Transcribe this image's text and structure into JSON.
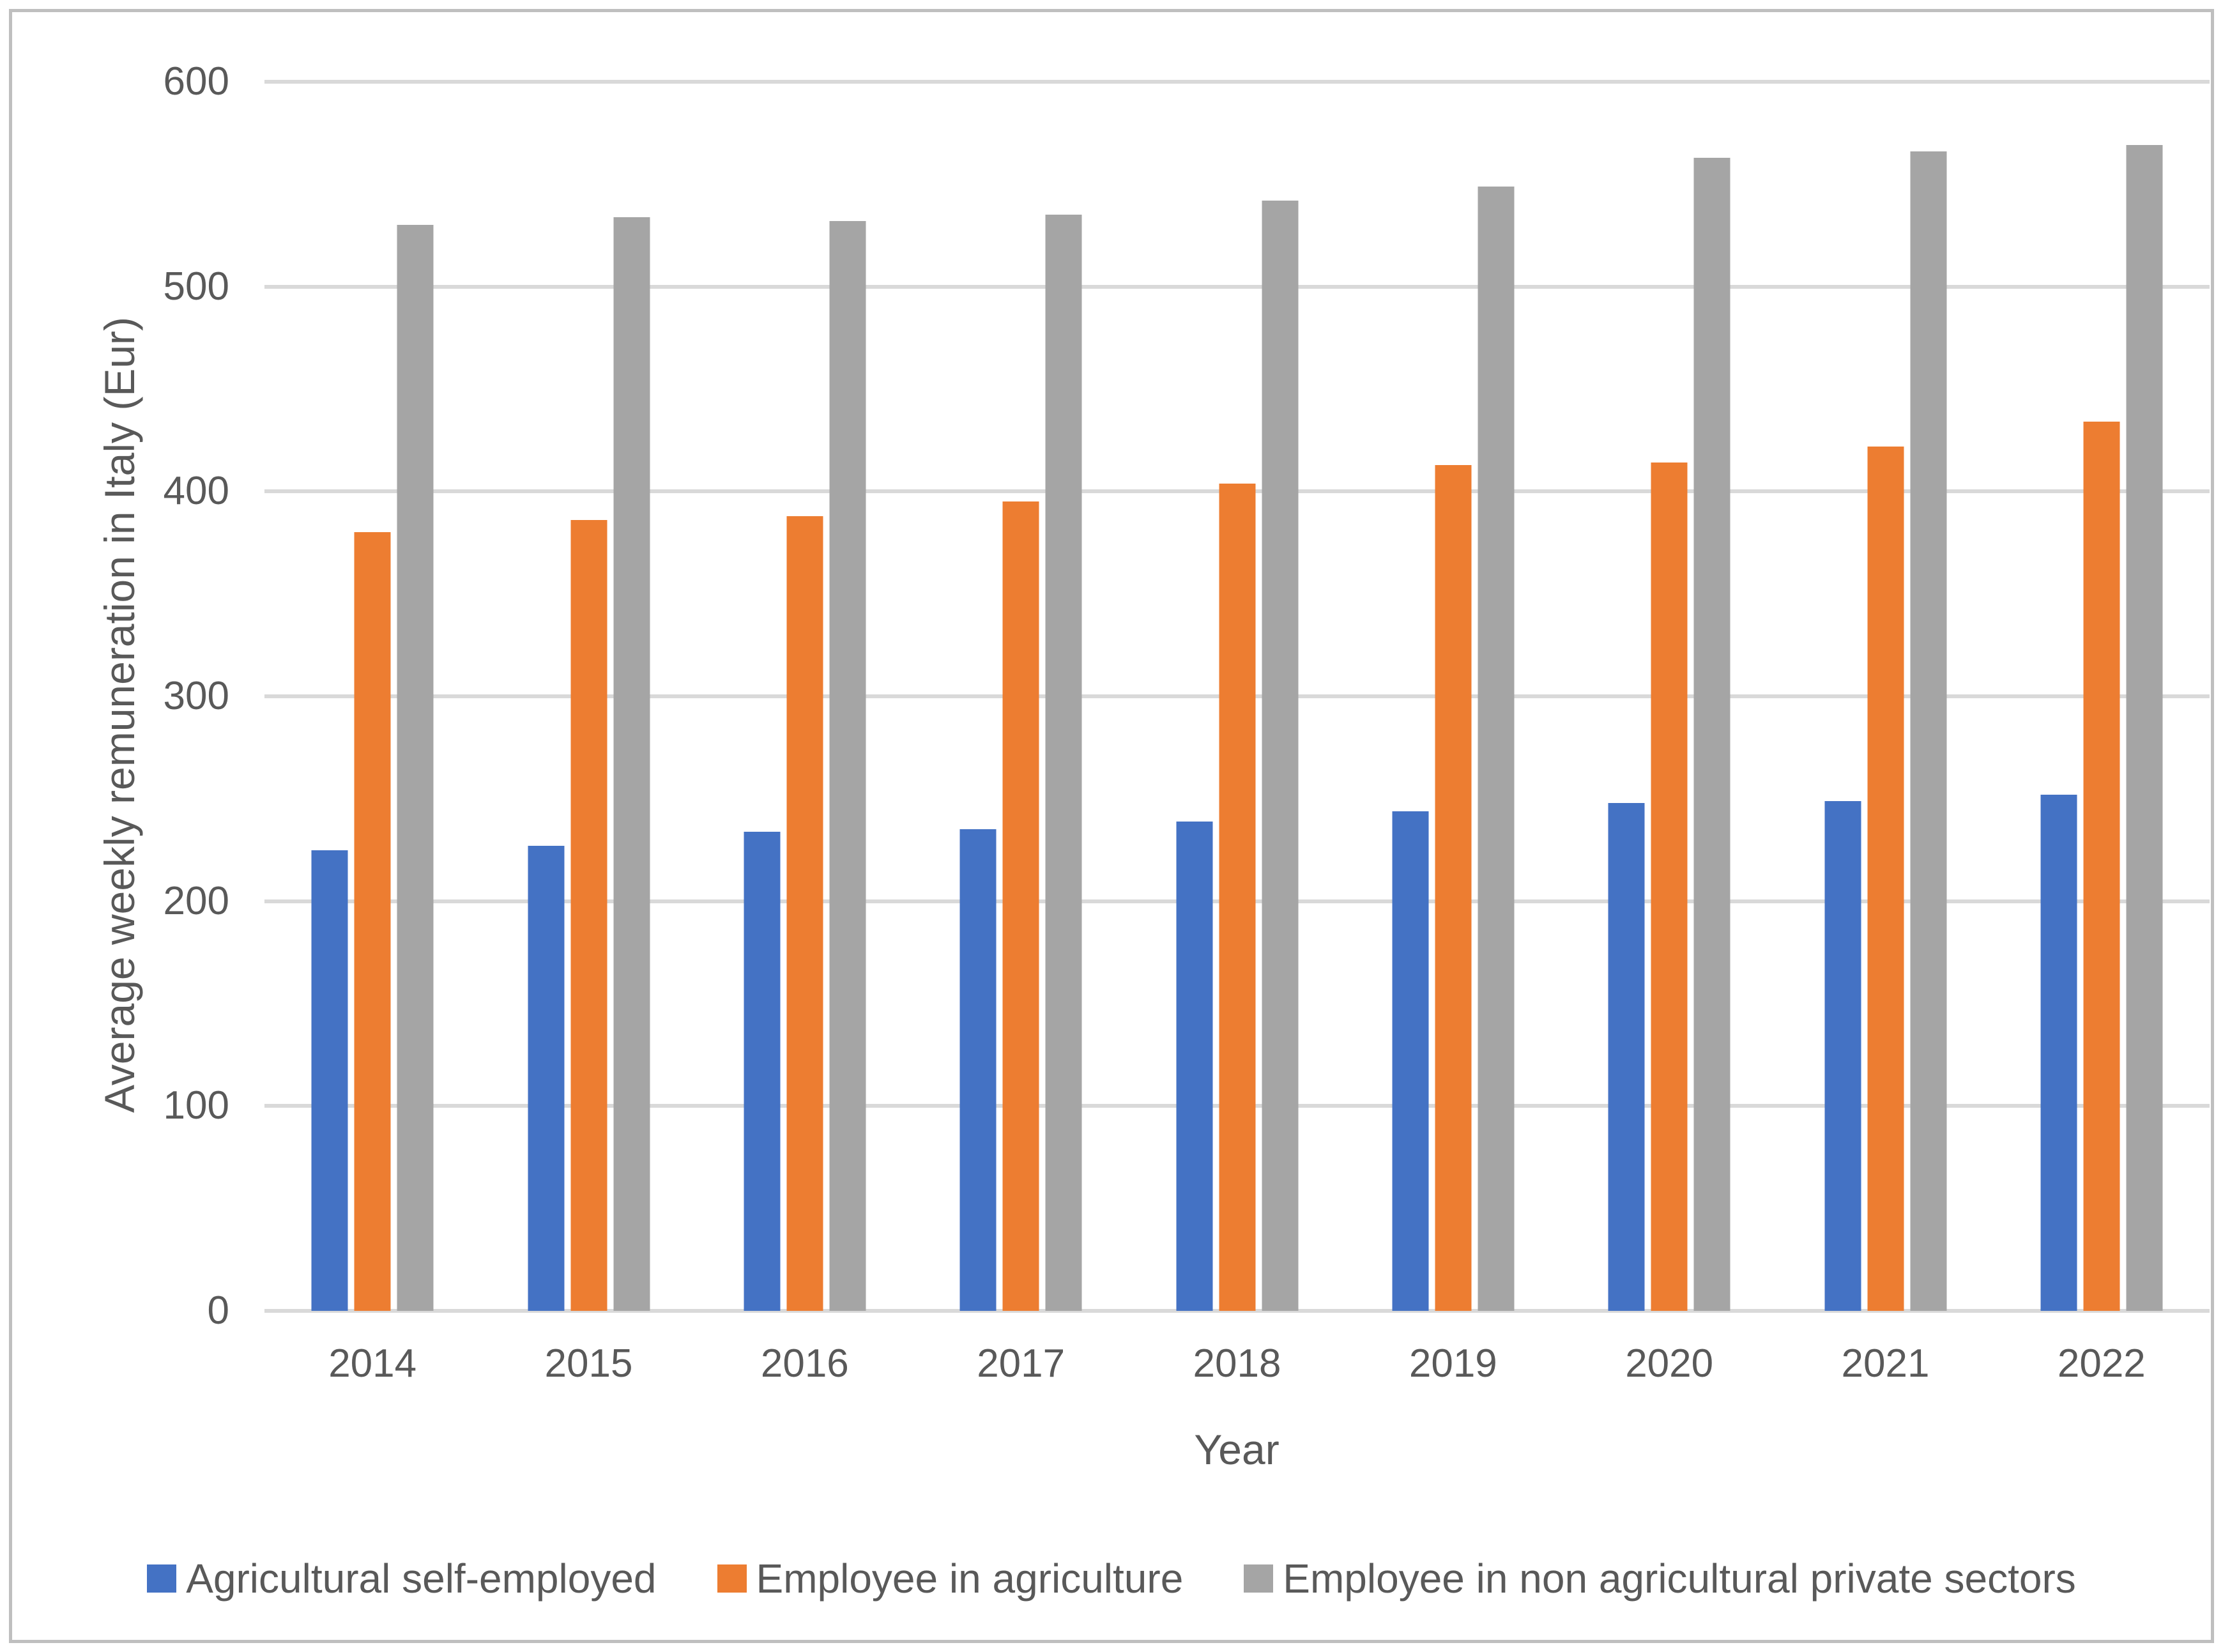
{
  "chart_data": {
    "type": "bar",
    "categories": [
      "2014",
      "2015",
      "2016",
      "2017",
      "2018",
      "2019",
      "2020",
      "2021",
      "2022"
    ],
    "series": [
      {
        "name": "Agricultural self-employed",
        "color": "#4472C4",
        "values": [
          225,
          227,
          234,
          235,
          239,
          244,
          248,
          249,
          252
        ]
      },
      {
        "name": "Employee in agriculture",
        "color": "#ED7D31",
        "values": [
          380,
          386,
          388,
          395,
          404,
          413,
          414,
          422,
          434
        ]
      },
      {
        "name": "Employee in non agricultural private sectors",
        "color": "#A5A5A5",
        "values": [
          530,
          534,
          532,
          535,
          542,
          549,
          563,
          566,
          569
        ]
      }
    ],
    "title": "",
    "xlabel": "Year",
    "ylabel": "Average weekly remuneration in Italy (Eur)",
    "ylim": [
      0,
      600
    ],
    "yticks": [
      0,
      100,
      200,
      300,
      400,
      500,
      600
    ],
    "grid": true,
    "gridline_color": "#D9D9D9",
    "text_color": "#595959",
    "frame_border_color": "#BFBFBF",
    "legend_position": "bottom"
  }
}
